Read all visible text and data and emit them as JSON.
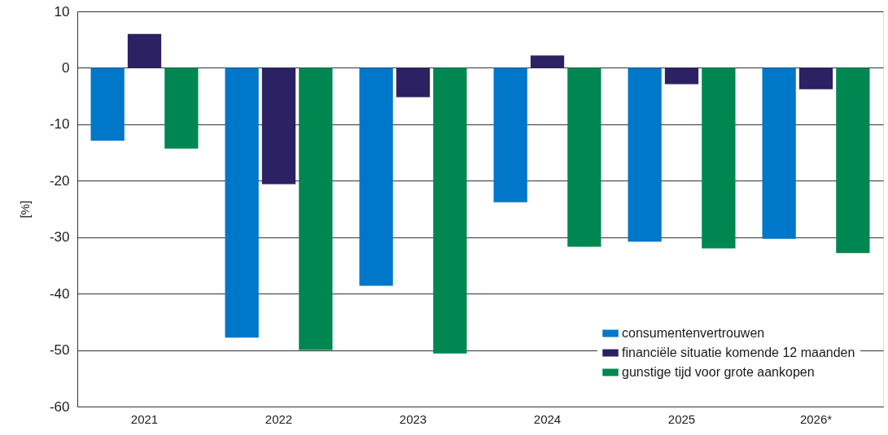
{
  "chart_data": {
    "type": "bar",
    "categories": [
      "2021",
      "2022",
      "2023",
      "2024",
      "2025",
      "2026*"
    ],
    "series": [
      {
        "name": "consumentenvertrouwen",
        "color": "#0077c8",
        "values": [
          -12.9,
          -47.8,
          -38.6,
          -23.8,
          -30.8,
          -30.3
        ]
      },
      {
        "name": "financiële situatie komende 12 maanden",
        "color": "#2c2162",
        "values": [
          6.0,
          -20.6,
          -5.2,
          2.2,
          -2.9,
          -3.8
        ]
      },
      {
        "name": "gunstige tijd voor grote aankopen",
        "color": "#008751",
        "values": [
          -14.3,
          -50.0,
          -50.6,
          -31.7,
          -32.0,
          -32.8
        ]
      }
    ],
    "ylabel": "[%]",
    "ylim": [
      -60,
      10
    ],
    "yticks": [
      -60,
      -50,
      -40,
      -30,
      -20,
      -10,
      0,
      10
    ],
    "grid": "y",
    "legend": "bottom right"
  }
}
